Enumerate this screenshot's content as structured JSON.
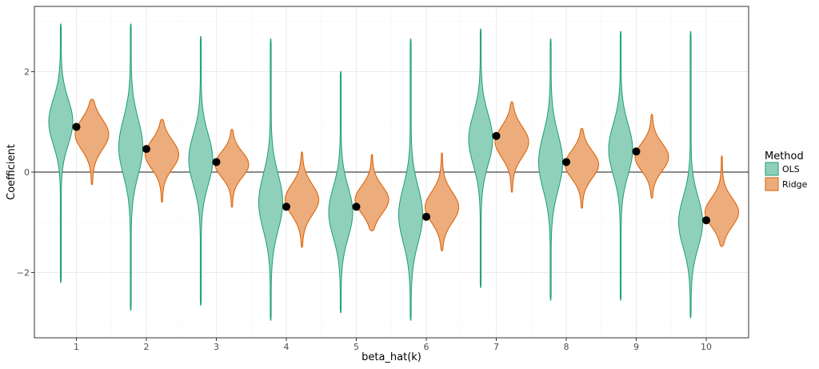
{
  "chart_data": {
    "type": "violin",
    "title": "",
    "xlabel": "beta_hat(k)",
    "ylabel": "Coefficient",
    "categories": [
      "1",
      "2",
      "3",
      "4",
      "5",
      "6",
      "7",
      "8",
      "9",
      "10"
    ],
    "yticks": [
      -2,
      0,
      2
    ],
    "ytick_labels": [
      "−2",
      "0",
      "2"
    ],
    "ylim": [
      -3.3,
      3.3
    ],
    "hline": 0,
    "true_values": [
      0.9,
      0.46,
      0.2,
      -0.69,
      -0.69,
      -0.89,
      0.72,
      0.2,
      0.41,
      -0.96
    ],
    "legend": {
      "title": "Method",
      "entries": [
        "OLS",
        "Ridge"
      ]
    },
    "series": [
      {
        "name": "OLS",
        "color": "#1b9e77",
        "fill": "#8fd0bb",
        "violins": [
          {
            "min": -2.2,
            "max": 2.95,
            "mode": 1.0,
            "spread": 0.45
          },
          {
            "min": -2.75,
            "max": 2.95,
            "mode": 0.5,
            "spread": 0.55
          },
          {
            "min": -2.65,
            "max": 2.7,
            "mode": 0.25,
            "spread": 0.5
          },
          {
            "min": -2.95,
            "max": 2.65,
            "mode": -0.6,
            "spread": 0.55
          },
          {
            "min": -2.8,
            "max": 2.0,
            "mode": -0.8,
            "spread": 0.5
          },
          {
            "min": -2.95,
            "max": 2.65,
            "mode": -0.85,
            "spread": 0.55
          },
          {
            "min": -2.3,
            "max": 2.85,
            "mode": 0.65,
            "spread": 0.5
          },
          {
            "min": -2.55,
            "max": 2.65,
            "mode": 0.2,
            "spread": 0.55
          },
          {
            "min": -2.55,
            "max": 2.8,
            "mode": 0.45,
            "spread": 0.5
          },
          {
            "min": -2.9,
            "max": 2.8,
            "mode": -1.0,
            "spread": 0.5
          }
        ]
      },
      {
        "name": "Ridge",
        "color": "#d95f02",
        "fill": "#ecac7c",
        "violins": [
          {
            "min": -0.25,
            "max": 1.45,
            "mode": 0.75,
            "spread": 0.3
          },
          {
            "min": -0.6,
            "max": 1.05,
            "mode": 0.35,
            "spread": 0.28
          },
          {
            "min": -0.7,
            "max": 0.85,
            "mode": 0.15,
            "spread": 0.25
          },
          {
            "min": -1.5,
            "max": 0.4,
            "mode": -0.55,
            "spread": 0.3
          },
          {
            "min": -1.17,
            "max": 0.35,
            "mode": -0.55,
            "spread": 0.27
          },
          {
            "min": -1.57,
            "max": 0.38,
            "mode": -0.7,
            "spread": 0.3
          },
          {
            "min": -0.4,
            "max": 1.4,
            "mode": 0.6,
            "spread": 0.3
          },
          {
            "min": -0.72,
            "max": 0.87,
            "mode": 0.15,
            "spread": 0.27
          },
          {
            "min": -0.52,
            "max": 1.15,
            "mode": 0.3,
            "spread": 0.27
          },
          {
            "min": -1.48,
            "max": 0.32,
            "mode": -0.8,
            "spread": 0.28
          }
        ]
      }
    ]
  }
}
